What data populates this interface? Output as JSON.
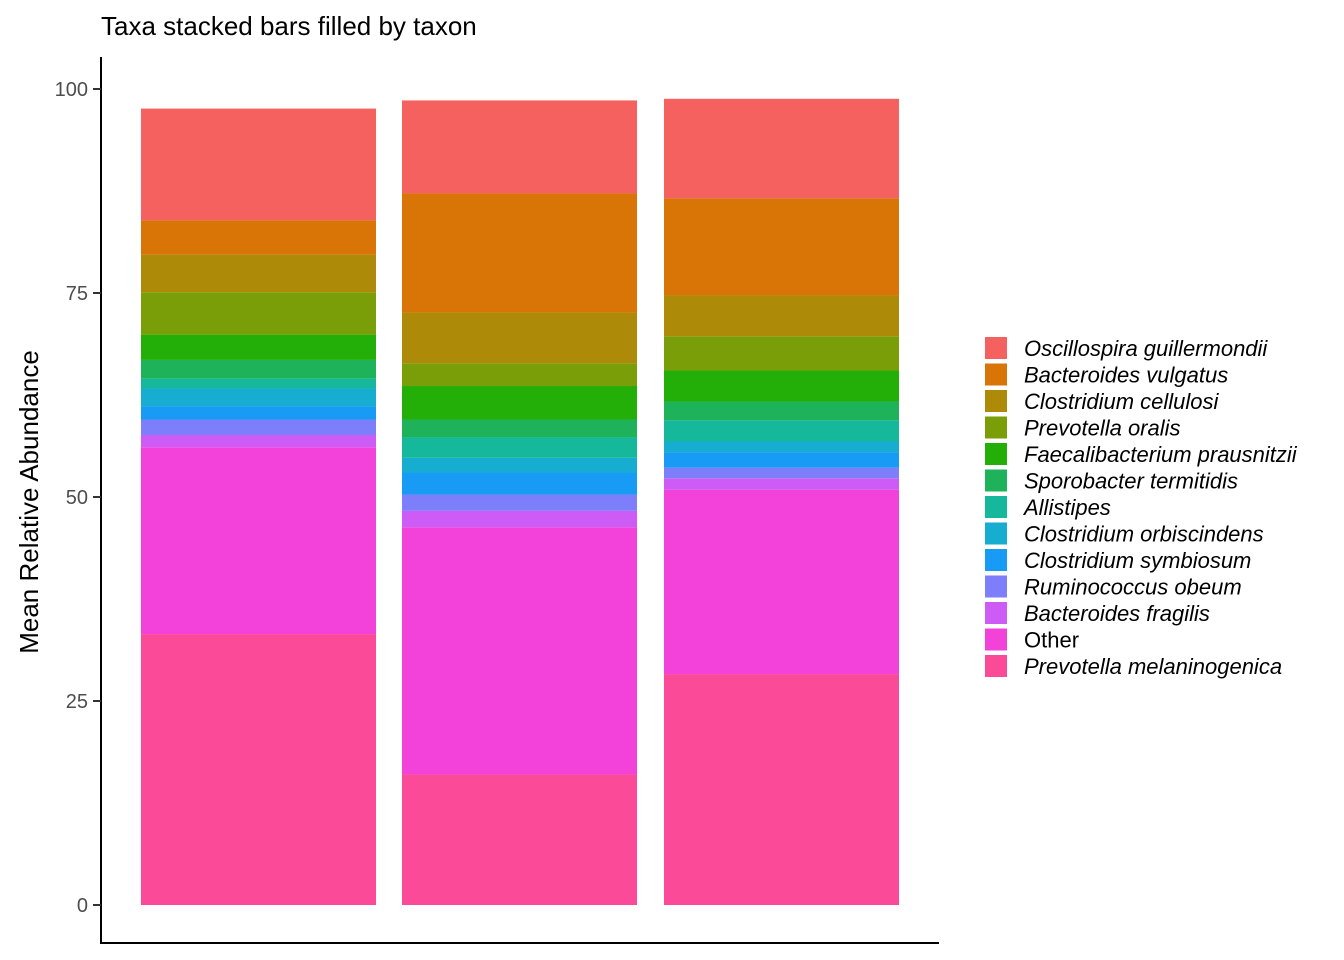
{
  "chart_data": {
    "type": "bar",
    "stacked": true,
    "title": "Taxa stacked bars filled by taxon",
    "xlabel": "",
    "ylabel": "Mean Relative Abundance",
    "ylim": [
      0,
      100
    ],
    "yticks": [
      "0",
      "25",
      "50",
      "75",
      "100"
    ],
    "grid": false,
    "legend_position": "right",
    "categories": [
      "",
      "",
      ""
    ],
    "series": [
      {
        "name": "Prevotella melaninogenica",
        "italic": true,
        "color": "#FB4A98",
        "values": [
          33.2,
          16.0,
          28.3
        ]
      },
      {
        "name": "Other",
        "italic": false,
        "color": "#F342D9",
        "values": [
          22.9,
          30.3,
          22.6
        ]
      },
      {
        "name": "Bacteroides fragilis",
        "italic": true,
        "color": "#CD5BF5",
        "values": [
          1.5,
          2.0,
          1.4
        ]
      },
      {
        "name": "Ruminococcus obeum",
        "italic": true,
        "color": "#7D7EF9",
        "values": [
          1.9,
          2.0,
          1.3
        ]
      },
      {
        "name": "Clostridium symbiosum",
        "italic": true,
        "color": "#189BF5",
        "values": [
          1.6,
          2.7,
          1.9
        ]
      },
      {
        "name": "Clostridium orbiscindens",
        "italic": true,
        "color": "#16ADD0",
        "values": [
          2.2,
          1.8,
          1.3
        ]
      },
      {
        "name": "Allistipes",
        "italic": true,
        "color": "#15B89B",
        "values": [
          1.2,
          2.5,
          2.6
        ]
      },
      {
        "name": "Sporobacter termitidis",
        "italic": true,
        "color": "#1EB35A",
        "values": [
          2.3,
          2.2,
          2.3
        ]
      },
      {
        "name": "Faecalibacterium prausnitzii",
        "italic": true,
        "color": "#23AF08",
        "values": [
          3.1,
          4.1,
          3.8
        ]
      },
      {
        "name": "Prevotella oralis",
        "italic": true,
        "color": "#7A9E08",
        "values": [
          5.2,
          2.8,
          4.2
        ]
      },
      {
        "name": "Clostridium cellulosi",
        "italic": true,
        "color": "#AD8A07",
        "values": [
          4.6,
          6.2,
          5.0
        ]
      },
      {
        "name": "Bacteroides vulgatus",
        "italic": true,
        "color": "#D97507",
        "values": [
          4.2,
          14.6,
          11.9
        ]
      },
      {
        "name": "Oscillospira guillermondii",
        "italic": true,
        "color": "#F4615E",
        "values": [
          13.7,
          11.4,
          12.2
        ]
      }
    ]
  }
}
